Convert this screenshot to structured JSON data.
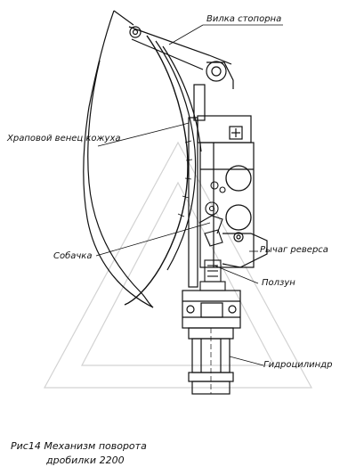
{
  "labels": {
    "fork": "Вилка стопорна",
    "ratchet": "Храповой венец кожуха",
    "pawl": "Собачка",
    "lever": "Рычаг реверса",
    "slider": "Ползун",
    "cylinder": "Гидроцилиндр"
  },
  "caption": {
    "line1": "Рис14 Механизм  поворота",
    "line2": "дробилки  2200"
  }
}
